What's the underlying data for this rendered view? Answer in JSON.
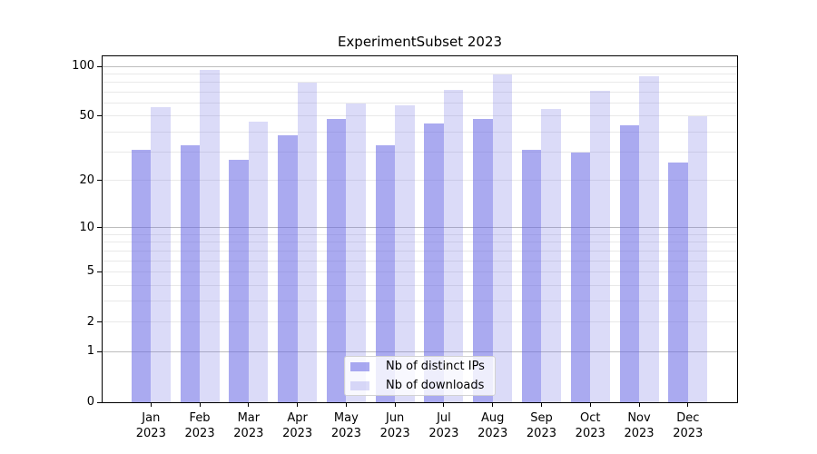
{
  "colors": {
    "series_distinct_ips": "rgba(100,100,228,0.55)",
    "series_downloads": "rgba(112,112,228,0.25)",
    "grid_major": "#bdbdbd",
    "grid_minor": "#e9e9e9",
    "axis": "#000000"
  },
  "legend": {
    "items": [
      {
        "label": "Nb of distinct IPs"
      },
      {
        "label": "Nb of downloads"
      }
    ]
  },
  "chart_data": {
    "type": "bar",
    "title": "ExperimentSubset 2023",
    "categories": [
      "Jan 2023",
      "Feb 2023",
      "Mar 2023",
      "Apr 2023",
      "May 2023",
      "Jun 2023",
      "Jul 2023",
      "Aug 2023",
      "Sep 2023",
      "Oct 2023",
      "Nov 2023",
      "Dec 2023"
    ],
    "series": [
      {
        "name": "Nb of distinct IPs",
        "color": "rgba(100,100,228,0.55)",
        "values": [
          31,
          33,
          27,
          38,
          48,
          33,
          45,
          48,
          31,
          30,
          44,
          26
        ]
      },
      {
        "name": "Nb of downloads",
        "color": "rgba(112,112,228,0.25)",
        "values": [
          57,
          95,
          46,
          80,
          60,
          58,
          72,
          89,
          55,
          71,
          87,
          50
        ]
      }
    ],
    "xlabel": "",
    "ylabel": "",
    "yscale": "log1p",
    "ylim": [
      0,
      115
    ],
    "yticks": [
      0,
      1,
      2,
      5,
      10,
      20,
      50,
      100
    ],
    "grid": {
      "major": [
        1,
        10,
        100
      ],
      "minor": [
        2,
        3,
        4,
        5,
        6,
        7,
        8,
        9,
        20,
        30,
        40,
        50,
        60,
        70,
        80,
        90
      ]
    },
    "legend_position": "lower center"
  }
}
